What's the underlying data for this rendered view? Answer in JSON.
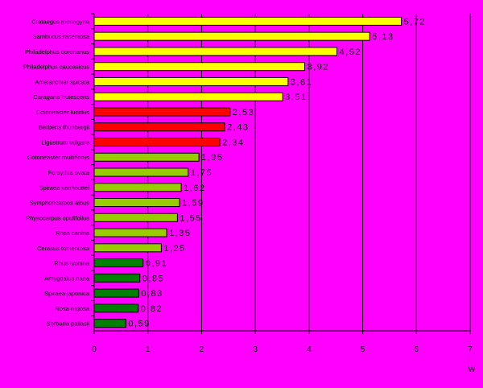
{
  "chart_data": {
    "type": "bar",
    "orientation": "horizontal",
    "categories": [
      "Crataegus monogyna",
      "Sambucus racemosa",
      "Philadelphus coronarius",
      "Philadelphus caucasicus",
      "Amelanchier spicata",
      "Caragana frutescens",
      "Cotoneaster lucidus",
      "Berberis thunbergii",
      "Ligustrum vulgare",
      "Cotoneaster multiflorus",
      "Forsythia ovata",
      "Spiraea vanhouttei",
      "Symphoricarpos albus",
      "Physocarpus opulifolius",
      "Rosa canina",
      "Cerasus tomentosa",
      "Rhus typhina",
      "Amygdalus nana",
      "Spiraea japonica",
      "Rosa rugosa",
      "Sorbaria pallasii"
    ],
    "values": [
      5.72,
      5.13,
      4.52,
      3.92,
      3.61,
      3.51,
      2.53,
      2.43,
      2.34,
      1.95,
      1.75,
      1.62,
      1.59,
      1.55,
      1.35,
      1.25,
      0.91,
      0.85,
      0.83,
      0.82,
      0.59
    ],
    "value_labels": [
      "5,72",
      "5,13",
      "4,52",
      "3,92",
      "3,61",
      "3,51",
      "2,53",
      "2,43",
      "2,34",
      "1,95",
      "1,75",
      "1,62",
      "1,59",
      "1,55",
      "1,35",
      "1,25",
      "0,91",
      "0,85",
      "0,83",
      "0,82",
      "0,59"
    ],
    "bar_colors": [
      "#FFFF00",
      "#FFFF00",
      "#FFFF00",
      "#FFFF00",
      "#FFFF00",
      "#FFFF00",
      "#FF0000",
      "#FF0000",
      "#FF0000",
      "#99CC00",
      "#99CC00",
      "#99CC00",
      "#99CC00",
      "#99CC00",
      "#99CC00",
      "#99CC00",
      "#008000",
      "#008000",
      "#008000",
      "#008000",
      "#008000"
    ],
    "xlim": [
      0,
      7
    ],
    "x_ticks": [
      "0",
      "1",
      "2",
      "3",
      "4",
      "5",
      "6",
      "7"
    ],
    "xlabel": "W",
    "grid": "vertical",
    "legend": "none",
    "plot_background": "#FF00FF",
    "page_background": "#000000"
  }
}
